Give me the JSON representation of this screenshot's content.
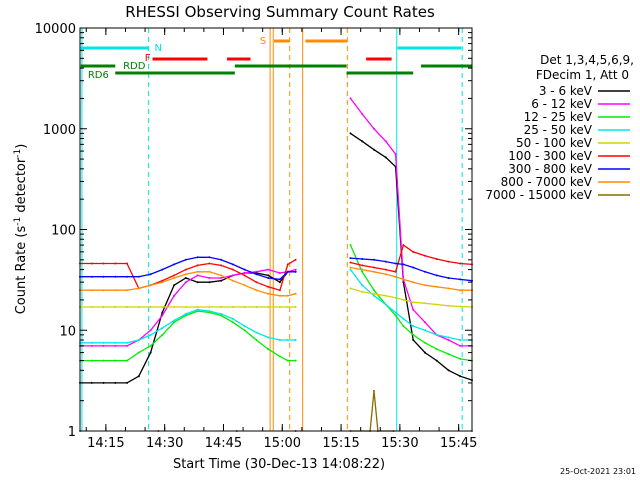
{
  "chart_data": {
    "type": "line",
    "title": "RHESSI Observing Summary Count Rates",
    "xlabel": "Start Time (30-Dec-13 14:08:22)",
    "ylabel": "Count Rate (s⁻¹ detector⁻¹)",
    "ylabel_parts": {
      "main": "Count Rate (s",
      "sup1": "-1",
      "mid": " detector",
      "sup2": "-1",
      "end": ")"
    },
    "yscale": "log",
    "ylim": [
      1,
      10000
    ],
    "xlim_minutes": [
      0,
      100
    ],
    "x_tick_minutes": [
      6.6,
      21.6,
      36.6,
      51.6,
      66.6,
      81.6,
      96.6
    ],
    "x_tick_labels": [
      "14:15",
      "14:30",
      "14:45",
      "15:00",
      "15:15",
      "15:30",
      "15:45"
    ],
    "y_tick_values": [
      1,
      10,
      100,
      1000,
      10000
    ],
    "y_tick_labels": [
      "1",
      "10",
      "100",
      "1000",
      "10000"
    ],
    "legend_header": [
      "Det 1,3,4,5,6,9,",
      "FDecim 1, Att 0"
    ],
    "legend_placement": "right",
    "timestamp": "25-Oct-2021 23:01",
    "flags": {
      "N": "N",
      "F": "F",
      "S": "S",
      "RDD": "RDD",
      "RD6": "RD6"
    },
    "series": [
      {
        "name": "3 - 6 keV",
        "color": "#000000",
        "x": [
          0,
          3,
          6,
          9,
          12,
          15,
          18,
          21,
          24,
          27,
          30,
          33,
          36,
          39,
          42,
          45,
          48,
          51,
          53,
          55,
          69,
          72,
          75,
          78,
          80.5,
          82.5,
          85,
          88,
          91,
          94,
          97,
          100
        ],
        "values": [
          3,
          3,
          3,
          3,
          3,
          3.5,
          6,
          15,
          28,
          33,
          30,
          30,
          31,
          35,
          37,
          37,
          35,
          30,
          38,
          38,
          900,
          750,
          620,
          520,
          420,
          30,
          8,
          6,
          5,
          4,
          3.5,
          3.2
        ]
      },
      {
        "name": "6 - 12 keV",
        "color": "#ff00ff",
        "x": [
          0,
          3,
          6,
          9,
          12,
          15,
          18,
          21,
          24,
          27,
          30,
          33,
          36,
          39,
          42,
          45,
          48,
          51,
          53,
          55,
          69,
          72,
          75,
          78,
          80.5,
          82.5,
          85,
          88,
          91,
          94,
          97,
          100
        ],
        "values": [
          7,
          7,
          7,
          7,
          7,
          8,
          10,
          14,
          22,
          30,
          35,
          33,
          33,
          35,
          37,
          38,
          40,
          37,
          38,
          40,
          2000,
          1400,
          1000,
          750,
          560,
          32,
          16,
          12,
          9,
          8,
          7,
          7
        ]
      },
      {
        "name": "12 - 25 keV",
        "color": "#00ee00",
        "x": [
          0,
          3,
          6,
          9,
          12,
          15,
          18,
          21,
          24,
          27,
          30,
          33,
          36,
          39,
          42,
          45,
          48,
          51,
          53,
          55,
          69,
          72,
          75,
          78,
          80.5,
          82.5,
          85,
          88,
          91,
          94,
          97,
          100
        ],
        "values": [
          5,
          5,
          5,
          5,
          5,
          6,
          7,
          9,
          12,
          14,
          15.5,
          15,
          14,
          12,
          10,
          8,
          6.5,
          5.5,
          5,
          5,
          70,
          38,
          25,
          18,
          14,
          11,
          9,
          7.5,
          6.5,
          5.8,
          5.2,
          5
        ]
      },
      {
        "name": "25 - 50 keV",
        "color": "#00e5e5",
        "x": [
          0,
          3,
          6,
          9,
          12,
          15,
          18,
          21,
          24,
          27,
          30,
          33,
          36,
          39,
          42,
          45,
          48,
          51,
          53,
          55,
          69,
          72,
          75,
          78,
          80.5,
          82.5,
          85,
          88,
          91,
          94,
          97,
          100
        ],
        "values": [
          7.5,
          7.5,
          7.5,
          7.5,
          7.5,
          8,
          9,
          10.5,
          12.5,
          14.5,
          16,
          15.5,
          14.5,
          13,
          11,
          9.5,
          8.5,
          8,
          8,
          8,
          40,
          28,
          22,
          18,
          15,
          13,
          11,
          10,
          9,
          8.5,
          8,
          8
        ]
      },
      {
        "name": "50 - 100 keV",
        "color": "#d4d400",
        "x": [
          0,
          3,
          6,
          9,
          12,
          15,
          18,
          21,
          24,
          27,
          30,
          33,
          36,
          39,
          42,
          45,
          48,
          51,
          53,
          55,
          69,
          72,
          75,
          78,
          80.5,
          82.5,
          85,
          88,
          91,
          94,
          97,
          100
        ],
        "values": [
          17,
          17,
          17,
          17,
          17,
          17,
          17,
          17,
          17,
          17,
          17,
          17,
          17,
          17,
          17,
          17,
          17,
          17,
          17,
          17,
          26,
          24,
          23,
          22,
          21,
          20,
          19,
          18.5,
          18,
          17.5,
          17.2,
          17
        ]
      },
      {
        "name": "100 - 300 keV",
        "color": "#ff0000",
        "x": [
          0,
          3,
          6,
          9,
          12,
          15,
          18,
          21,
          24,
          27,
          30,
          33,
          36,
          39,
          42,
          45,
          48,
          51,
          53,
          55,
          69,
          72,
          75,
          78,
          80.5,
          82.5,
          85,
          88,
          91,
          94,
          97,
          100
        ],
        "values": [
          46,
          46,
          46,
          46,
          46,
          26,
          28,
          31,
          35,
          40,
          44,
          46,
          44,
          40,
          35,
          30,
          27,
          25,
          45,
          50,
          47,
          44,
          42,
          40,
          38,
          70,
          60,
          55,
          51,
          48,
          46,
          45
        ]
      },
      {
        "name": "300 - 800 keV",
        "color": "#0000ff",
        "x": [
          0,
          3,
          6,
          9,
          12,
          15,
          18,
          21,
          24,
          27,
          30,
          33,
          36,
          39,
          42,
          45,
          48,
          51,
          53,
          55,
          69,
          72,
          75,
          78,
          80.5,
          82.5,
          85,
          88,
          91,
          94,
          97,
          100
        ],
        "values": [
          34,
          34,
          34,
          34,
          34,
          34,
          36,
          40,
          45,
          50,
          53,
          53,
          50,
          45,
          40,
          36,
          33,
          32,
          38,
          38,
          52,
          51,
          50,
          48,
          46,
          45,
          42,
          38,
          35,
          33,
          32,
          31
        ]
      },
      {
        "name": "800 - 7000 keV",
        "color": "#ff8c00",
        "x": [
          0,
          3,
          6,
          9,
          12,
          15,
          18,
          21,
          24,
          27,
          30,
          33,
          36,
          39,
          42,
          45,
          48,
          51,
          53,
          55,
          69,
          72,
          75,
          78,
          80.5,
          82.5,
          85,
          88,
          91,
          94,
          97,
          100
        ],
        "values": [
          25,
          25,
          25,
          25,
          25,
          26,
          28,
          30,
          33,
          36,
          38,
          38,
          35,
          31,
          28,
          25,
          23,
          22,
          22,
          23,
          42,
          40,
          38,
          36,
          34,
          32,
          30,
          28,
          27,
          26,
          25,
          25
        ]
      },
      {
        "name": "7000 - 15000 keV",
        "color": "#8b6b00",
        "x": [
          0,
          20,
          40,
          55,
          69,
          74,
          75,
          76,
          80,
          100
        ],
        "values": [
          1,
          1,
          1,
          1,
          1,
          1,
          2.5,
          1,
          1,
          1
        ]
      }
    ]
  }
}
